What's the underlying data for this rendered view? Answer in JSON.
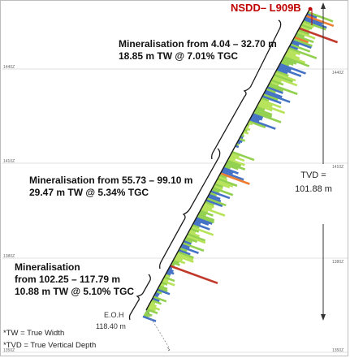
{
  "hole_id": "NSDD– L909B",
  "elevations": {
    "left": [
      "1440Z",
      "1410Z",
      "1380Z",
      "1350Z"
    ],
    "right": [
      "1440Z",
      "1410Z",
      "1380Z",
      "1350Z"
    ]
  },
  "intervals": [
    {
      "line1": "Mineralisation from 4.04 – 32.70 m",
      "line2": "18.85 m TW @ 7.01% TGC"
    },
    {
      "line1": "Mineralisation from 55.73 – 99.10 m",
      "line2": "29.47 m TW @ 5.34% TGC"
    },
    {
      "line1": "Mineralisation",
      "line2": "from 102.25 – 117.79 m",
      "line3": "10.88 m TW @ 5.10% TGC"
    }
  ],
  "tvd": {
    "line1": "TVD =",
    "line2": "101.88 m"
  },
  "eoh": {
    "line1": "E.O.H",
    "line2": "118.40 m"
  },
  "footnotes": [
    "*TW = True Width",
    "*TVD = True Vertical Depth"
  ],
  "colors": {
    "hole_label": "#c00000",
    "green": "#92d050",
    "light_green": "#b7e35a",
    "blue": "#4472c4",
    "orange": "#ed7d31",
    "red": "#c0392b"
  }
}
